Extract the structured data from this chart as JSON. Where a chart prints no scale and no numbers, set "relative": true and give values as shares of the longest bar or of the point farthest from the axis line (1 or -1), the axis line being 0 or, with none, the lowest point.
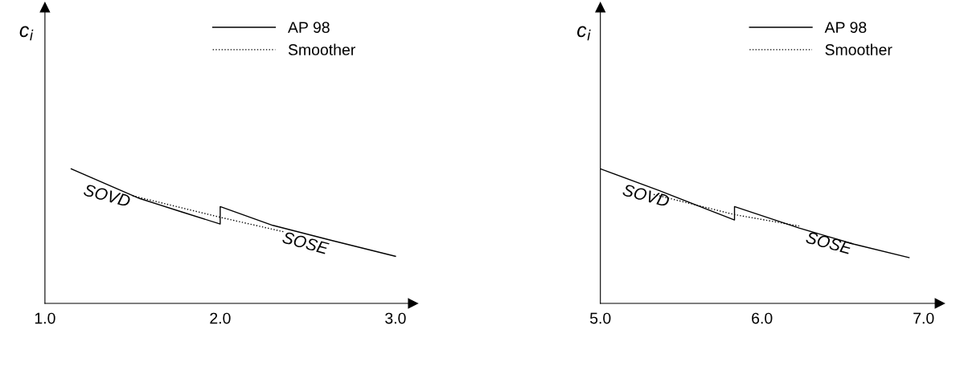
{
  "chart_data": [
    {
      "type": "line",
      "relative": true,
      "ylabel": "c$_{i}$",
      "xlim": [
        1.0,
        3.1
      ],
      "xticks": [
        {
          "value": 1.0,
          "label": "1.0"
        },
        {
          "value": 2.0,
          "label": "2.0"
        },
        {
          "value": 3.0,
          "label": "3.0"
        }
      ],
      "legend": "top",
      "tick_labels": "x",
      "series": [
        {
          "name": "AP 98",
          "color": "#000000",
          "line_style": "solid",
          "x": [
            1.15,
            1.54,
            1.78,
            2.0,
            2.0,
            2.3,
            2.63,
            3.0
          ],
          "values": [
            1.0,
            0.78,
            0.68,
            0.59,
            0.72,
            0.58,
            0.47,
            0.35
          ]
        },
        {
          "name": "Smoother",
          "color": "#000000",
          "line_style": "dotted",
          "x": [
            1.5,
            2.0,
            2.37
          ],
          "values": [
            0.8,
            0.64,
            0.53
          ]
        }
      ],
      "annotations": [
        "SOVD",
        "SOSE"
      ]
    },
    {
      "type": "line",
      "relative": true,
      "ylabel": "c$_{i}$",
      "xlim": [
        5.0,
        7.1
      ],
      "xticks": [
        {
          "value": 5.0,
          "label": "5.0"
        },
        {
          "value": 6.0,
          "label": "6.0"
        },
        {
          "value": 7.0,
          "label": "7.0"
        }
      ],
      "legend": "top",
      "tick_labels": "x",
      "series": [
        {
          "name": "AP 98",
          "color": "#000000",
          "line_style": "solid",
          "x": [
            5.0,
            5.36,
            5.83,
            5.83,
            6.23,
            6.57,
            6.91
          ],
          "values": [
            1.0,
            0.84,
            0.62,
            0.72,
            0.56,
            0.44,
            0.34
          ]
        },
        {
          "name": "Smoother",
          "color": "#000000",
          "line_style": "dotted",
          "x": [
            5.33,
            5.83,
            6.23
          ],
          "values": [
            0.81,
            0.66,
            0.575
          ]
        }
      ],
      "annotations": [
        "SOVD",
        "SOSE"
      ]
    }
  ]
}
